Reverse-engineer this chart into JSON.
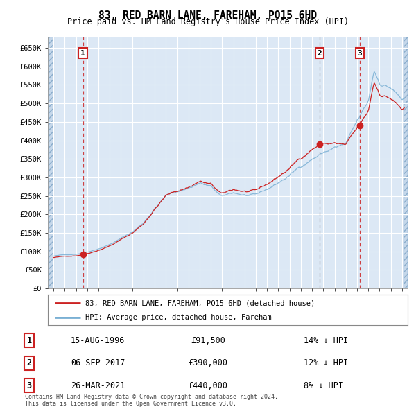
{
  "title": "83, RED BARN LANE, FAREHAM, PO15 6HD",
  "subtitle": "Price paid vs. HM Land Registry's House Price Index (HPI)",
  "ylim": [
    0,
    680000
  ],
  "yticks": [
    0,
    50000,
    100000,
    150000,
    200000,
    250000,
    300000,
    350000,
    400000,
    450000,
    500000,
    550000,
    600000,
    650000
  ],
  "ytick_labels": [
    "£0",
    "£50K",
    "£100K",
    "£150K",
    "£200K",
    "£250K",
    "£300K",
    "£350K",
    "£400K",
    "£450K",
    "£500K",
    "£550K",
    "£600K",
    "£650K"
  ],
  "hpi_color": "#7ab0d4",
  "price_color": "#cc2222",
  "marker_color": "#cc2222",
  "background_color": "#ffffff",
  "plot_bg_color": "#dce8f5",
  "grid_color": "#ffffff",
  "hatch_color": "#b0c8e0",
  "transactions": [
    {
      "date_num": 1996.62,
      "price": 91500,
      "label": "1",
      "vline_color": "#cc2222",
      "vline_style": "--"
    },
    {
      "date_num": 2017.68,
      "price": 390000,
      "label": "2",
      "vline_color": "#888888",
      "vline_style": "--"
    },
    {
      "date_num": 2021.23,
      "price": 440000,
      "label": "3",
      "vline_color": "#cc2222",
      "vline_style": "--"
    }
  ],
  "legend_entries": [
    "83, RED BARN LANE, FAREHAM, PO15 6HD (detached house)",
    "HPI: Average price, detached house, Fareham"
  ],
  "table_data": [
    [
      "1",
      "15-AUG-1996",
      "£91,500",
      "14% ↓ HPI"
    ],
    [
      "2",
      "06-SEP-2017",
      "£390,000",
      "12% ↓ HPI"
    ],
    [
      "3",
      "26-MAR-2021",
      "£440,000",
      "8% ↓ HPI"
    ]
  ],
  "footnote": "Contains HM Land Registry data © Crown copyright and database right 2024.\nThis data is licensed under the Open Government Licence v3.0.",
  "xmin": 1993.5,
  "xmax": 2025.5
}
